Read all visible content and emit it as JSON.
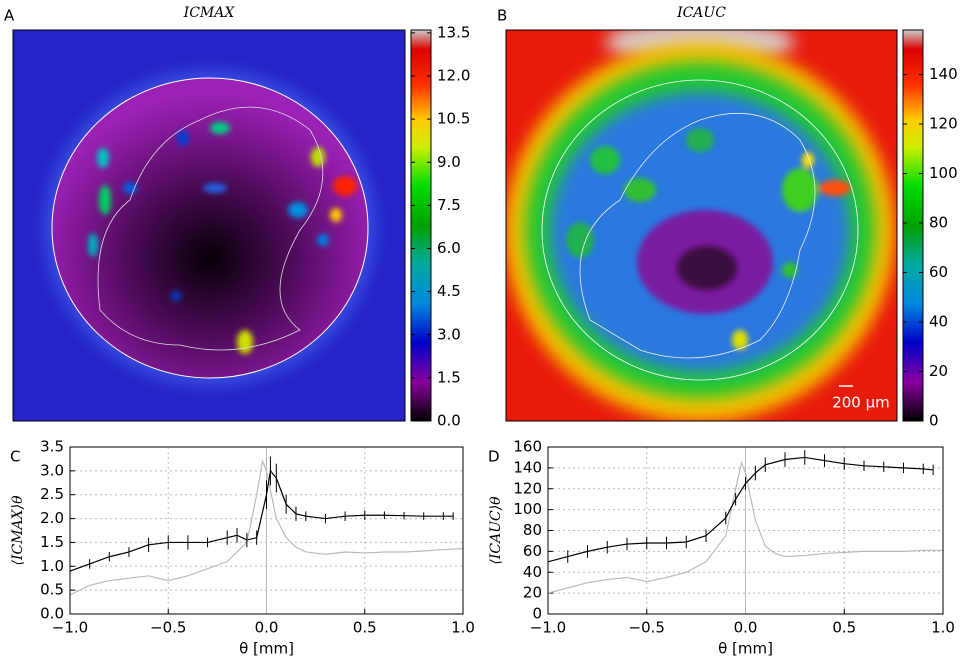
{
  "chart_data": [
    {
      "type": "heatmap",
      "panel": "A",
      "title": "ICMAX",
      "colormap": "nipy_spectral",
      "clim": [
        0,
        13.6
      ],
      "cticks": [
        {
          "value": 0,
          "label": "0.0"
        },
        1.5,
        {
          "value": 3,
          "label": "3.0"
        },
        4.5,
        {
          "value": 6,
          "label": "6.0"
        },
        7.5,
        {
          "value": 9,
          "label": "9.0"
        },
        10.5,
        {
          "value": 12,
          "label": "12.0"
        },
        13.5
      ]
    },
    {
      "type": "heatmap",
      "panel": "B",
      "title": "ICAUC",
      "colormap": "nipy_spectral",
      "clim": [
        0,
        158
      ],
      "cticks": [
        0,
        20,
        40,
        60,
        80,
        100,
        120,
        140
      ],
      "scalebar": "200 μm"
    },
    {
      "type": "line",
      "panel": "C",
      "xlabel": "θ [mm]",
      "ylabel": "⟨ICMAX⟩θ",
      "grid": true,
      "xlim": [
        -1,
        1
      ],
      "xticks": [
        {
          "value": -1,
          "label": "−1.0"
        },
        {
          "value": -0.5,
          "label": "−0.5"
        },
        {
          "value": 0,
          "label": "0.0"
        },
        0.5,
        {
          "value": 1,
          "label": "1.0"
        }
      ],
      "ylim": [
        0,
        3.5
      ],
      "yticks": [
        {
          "value": 0,
          "label": "0.0"
        },
        0.5,
        {
          "value": 1,
          "label": "1.0"
        },
        1.5,
        {
          "value": 2,
          "label": "2.0"
        },
        2.5,
        {
          "value": 3,
          "label": "3.0"
        },
        3.5
      ],
      "series": [
        {
          "color": "#bbbbbb",
          "x": [
            -1,
            -0.9,
            -0.8,
            -0.7,
            -0.6,
            -0.5,
            -0.4,
            -0.3,
            -0.2,
            -0.1,
            -0.05,
            -0.02,
            0,
            0.05,
            0.1,
            0.15,
            0.2,
            0.3,
            0.4,
            0.5,
            0.6,
            0.7,
            0.8,
            0.9,
            1
          ],
          "values": [
            0.4,
            0.6,
            0.7,
            0.75,
            0.8,
            0.7,
            0.8,
            0.95,
            1.1,
            1.5,
            2.5,
            3.2,
            3.0,
            2.0,
            1.6,
            1.4,
            1.3,
            1.25,
            1.3,
            1.28,
            1.3,
            1.3,
            1.32,
            1.35,
            1.37
          ]
        },
        {
          "color": "#000000",
          "x": [
            -1,
            -0.9,
            -0.8,
            -0.7,
            -0.6,
            -0.5,
            -0.4,
            -0.3,
            -0.2,
            -0.15,
            -0.1,
            -0.05,
            0,
            0.02,
            0.05,
            0.1,
            0.15,
            0.2,
            0.3,
            0.4,
            0.5,
            0.6,
            0.7,
            0.8,
            0.9,
            0.95
          ],
          "values": [
            0.9,
            1.05,
            1.2,
            1.3,
            1.45,
            1.5,
            1.5,
            1.5,
            1.6,
            1.65,
            1.55,
            1.6,
            2.5,
            3.0,
            2.85,
            2.3,
            2.1,
            2.05,
            2.0,
            2.05,
            2.07,
            2.07,
            2.06,
            2.05,
            2.05,
            2.05
          ],
          "errors": [
            0.15,
            0.1,
            0.1,
            0.1,
            0.15,
            0.15,
            0.15,
            0.1,
            0.15,
            0.15,
            0.15,
            0.15,
            0.3,
            0.3,
            0.3,
            0.2,
            0.15,
            0.1,
            0.1,
            0.1,
            0.1,
            0.08,
            0.08,
            0.08,
            0.08,
            0.08
          ]
        }
      ]
    },
    {
      "type": "line",
      "panel": "D",
      "xlabel": "θ [mm]",
      "ylabel": "⟨ICAUC⟩θ",
      "grid": true,
      "xlim": [
        -1,
        1
      ],
      "xticks": [
        {
          "value": -1,
          "label": "−1.0"
        },
        {
          "value": -0.5,
          "label": "−0.5"
        },
        {
          "value": 0,
          "label": "0.0"
        },
        0.5,
        {
          "value": 1,
          "label": "1.0"
        }
      ],
      "ylim": [
        0,
        160
      ],
      "yticks": [
        0,
        20,
        40,
        60,
        80,
        100,
        120,
        140,
        160
      ],
      "series": [
        {
          "color": "#bbbbbb",
          "x": [
            -1,
            -0.9,
            -0.8,
            -0.7,
            -0.6,
            -0.5,
            -0.4,
            -0.3,
            -0.2,
            -0.1,
            -0.05,
            -0.02,
            0,
            0.05,
            0.1,
            0.15,
            0.2,
            0.3,
            0.4,
            0.5,
            0.6,
            0.7,
            0.8,
            0.9,
            1
          ],
          "values": [
            20,
            25,
            30,
            33,
            35,
            31,
            35,
            40,
            50,
            75,
            120,
            145,
            135,
            90,
            65,
            58,
            55,
            56,
            58,
            59,
            60,
            60,
            60,
            61,
            61
          ]
        },
        {
          "color": "#000000",
          "x": [
            -1,
            -0.9,
            -0.8,
            -0.7,
            -0.6,
            -0.5,
            -0.4,
            -0.3,
            -0.2,
            -0.1,
            -0.05,
            0,
            0.05,
            0.1,
            0.2,
            0.3,
            0.4,
            0.5,
            0.6,
            0.7,
            0.8,
            0.9,
            0.95
          ],
          "values": [
            50,
            55,
            60,
            64,
            67,
            68,
            68,
            69,
            75,
            92,
            110,
            125,
            135,
            143,
            148,
            150,
            147,
            144,
            142,
            141,
            140,
            139,
            138
          ],
          "errors": [
            6,
            6,
            6,
            6,
            6,
            6,
            6,
            6,
            6,
            6,
            6,
            6,
            7,
            7,
            7,
            7,
            6,
            6,
            5,
            5,
            5,
            5,
            5
          ]
        }
      ]
    }
  ]
}
